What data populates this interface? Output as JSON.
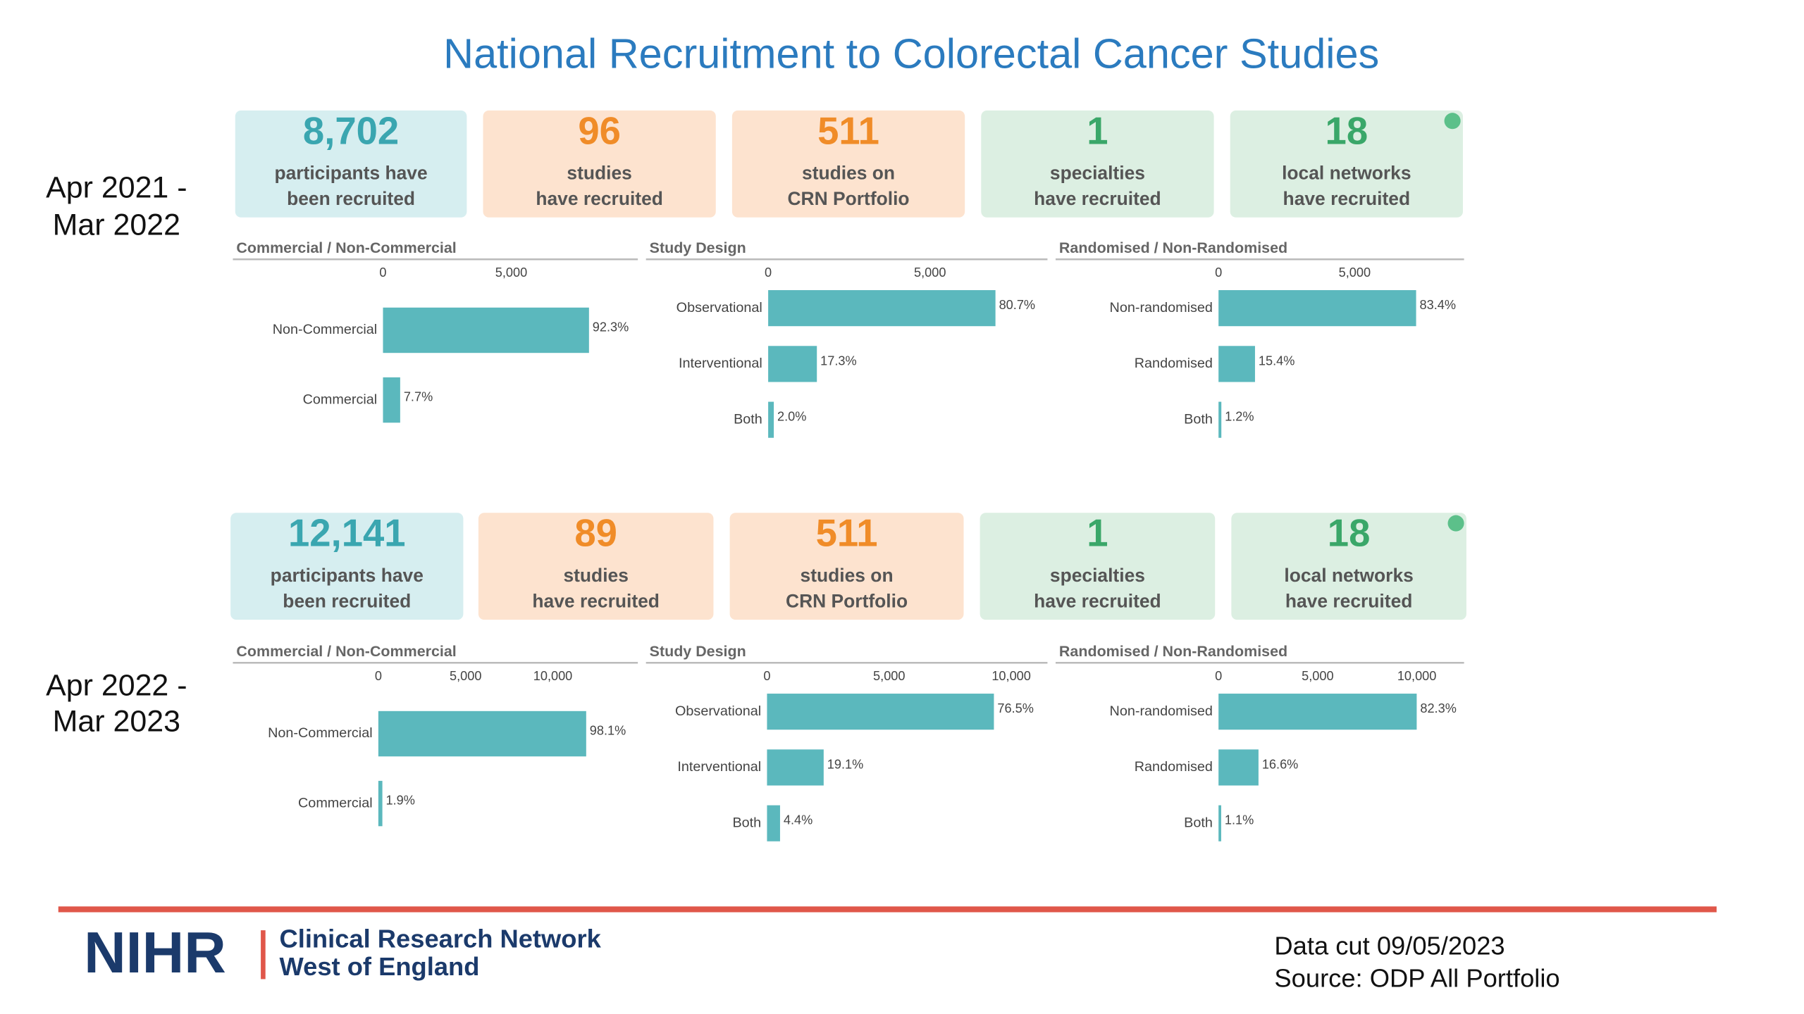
{
  "title": "National Recruitment to Colorectal Cancer Studies",
  "periods": [
    {
      "label_lines": [
        "Apr 2021 -",
        "Mar 2022"
      ],
      "cards": [
        {
          "value": "8,702",
          "lines": [
            "participants have",
            "been recruited"
          ]
        },
        {
          "value": "96",
          "lines": [
            "studies",
            "have recruited"
          ]
        },
        {
          "value": "511",
          "lines": [
            "studies on",
            "CRN Portfolio"
          ]
        },
        {
          "value": "1",
          "lines": [
            "specialties",
            "have recruited"
          ]
        },
        {
          "value": "18",
          "lines": [
            "local networks",
            "have recruited"
          ]
        }
      ]
    },
    {
      "label_lines": [
        "Apr 2022 -",
        "Mar 2023"
      ],
      "cards": [
        {
          "value": "12,141",
          "lines": [
            "participants have",
            "been recruited"
          ]
        },
        {
          "value": "89",
          "lines": [
            "studies",
            "have recruited"
          ]
        },
        {
          "value": "511",
          "lines": [
            "studies on",
            "CRN Portfolio"
          ]
        },
        {
          "value": "1",
          "lines": [
            "specialties",
            "have recruited"
          ]
        },
        {
          "value": "18",
          "lines": [
            "local networks",
            "have recruited"
          ]
        }
      ]
    }
  ],
  "chart_data": [
    {
      "type": "bar",
      "title": "Commercial / Non-Commercial",
      "categories": [
        "Non-Commercial",
        "Commercial"
      ],
      "values": [
        8032,
        670
      ],
      "share_labels": [
        "92.3%",
        "7.7%"
      ],
      "color": "#5bb8bd",
      "xlim": [
        0,
        9800
      ],
      "xticks": [
        0,
        {
          "value": 5000,
          "label": "5,000"
        }
      ]
    },
    {
      "type": "bar",
      "title": "Study Design",
      "categories": [
        "Observational",
        "Interventional",
        "Both"
      ],
      "values": [
        7023,
        1505,
        174
      ],
      "share_labels": [
        "80.7%",
        "17.3%",
        "2.0%"
      ],
      "color": "#5bb8bd",
      "xlim": [
        0,
        8630
      ],
      "xticks": [
        0,
        {
          "value": 5000,
          "label": "5,000"
        }
      ]
    },
    {
      "type": "bar",
      "title": "Randomised / Non-Randomised",
      "categories": [
        "Non-randomised",
        "Randomised",
        "Both"
      ],
      "values": [
        7257,
        1340,
        104
      ],
      "share_labels": [
        "83.4%",
        "15.4%",
        "1.2%"
      ],
      "color": "#5bb8bd",
      "xlim": [
        0,
        8890
      ],
      "xticks": [
        0,
        {
          "value": 5000,
          "label": "5,000"
        }
      ]
    },
    {
      "type": "bar",
      "title": "Commercial / Non-Commercial",
      "categories": [
        "Non-Commercial",
        "Commercial"
      ],
      "values": [
        11910,
        231
      ],
      "share_labels": [
        "98.1%",
        "1.9%"
      ],
      "color": "#5bb8bd",
      "xlim": [
        0,
        14670
      ],
      "xticks": [
        0,
        {
          "value": 5000,
          "label": "5,000"
        },
        {
          "value": 10000,
          "label": "10,000"
        }
      ]
    },
    {
      "type": "bar",
      "title": "Study Design",
      "categories": [
        "Observational",
        "Interventional",
        "Both"
      ],
      "values": [
        9288,
        2319,
        534
      ],
      "share_labels": [
        "76.5%",
        "19.1%",
        "4.4%"
      ],
      "color": "#5bb8bd",
      "xlim": [
        0,
        11480
      ],
      "xticks": [
        0,
        {
          "value": 5000,
          "label": "5,000"
        },
        {
          "value": 10000,
          "label": "10,000"
        }
      ]
    },
    {
      "type": "bar",
      "title": "Randomised / Non-Randomised",
      "categories": [
        "Non-randomised",
        "Randomised",
        "Both"
      ],
      "values": [
        9992,
        2015,
        134
      ],
      "share_labels": [
        "82.3%",
        "16.6%",
        "1.1%"
      ],
      "color": "#5bb8bd",
      "xlim": [
        0,
        12380
      ],
      "xticks": [
        0,
        {
          "value": 5000,
          "label": "5,000"
        },
        {
          "value": 10000,
          "label": "10,000"
        }
      ]
    }
  ],
  "footer": {
    "logo": "NIHR",
    "network_lines": [
      "Clinical Research Network",
      "West of England"
    ],
    "notes": [
      "Data cut 09/05/2023",
      "Source: ODP All Portfolio"
    ]
  }
}
